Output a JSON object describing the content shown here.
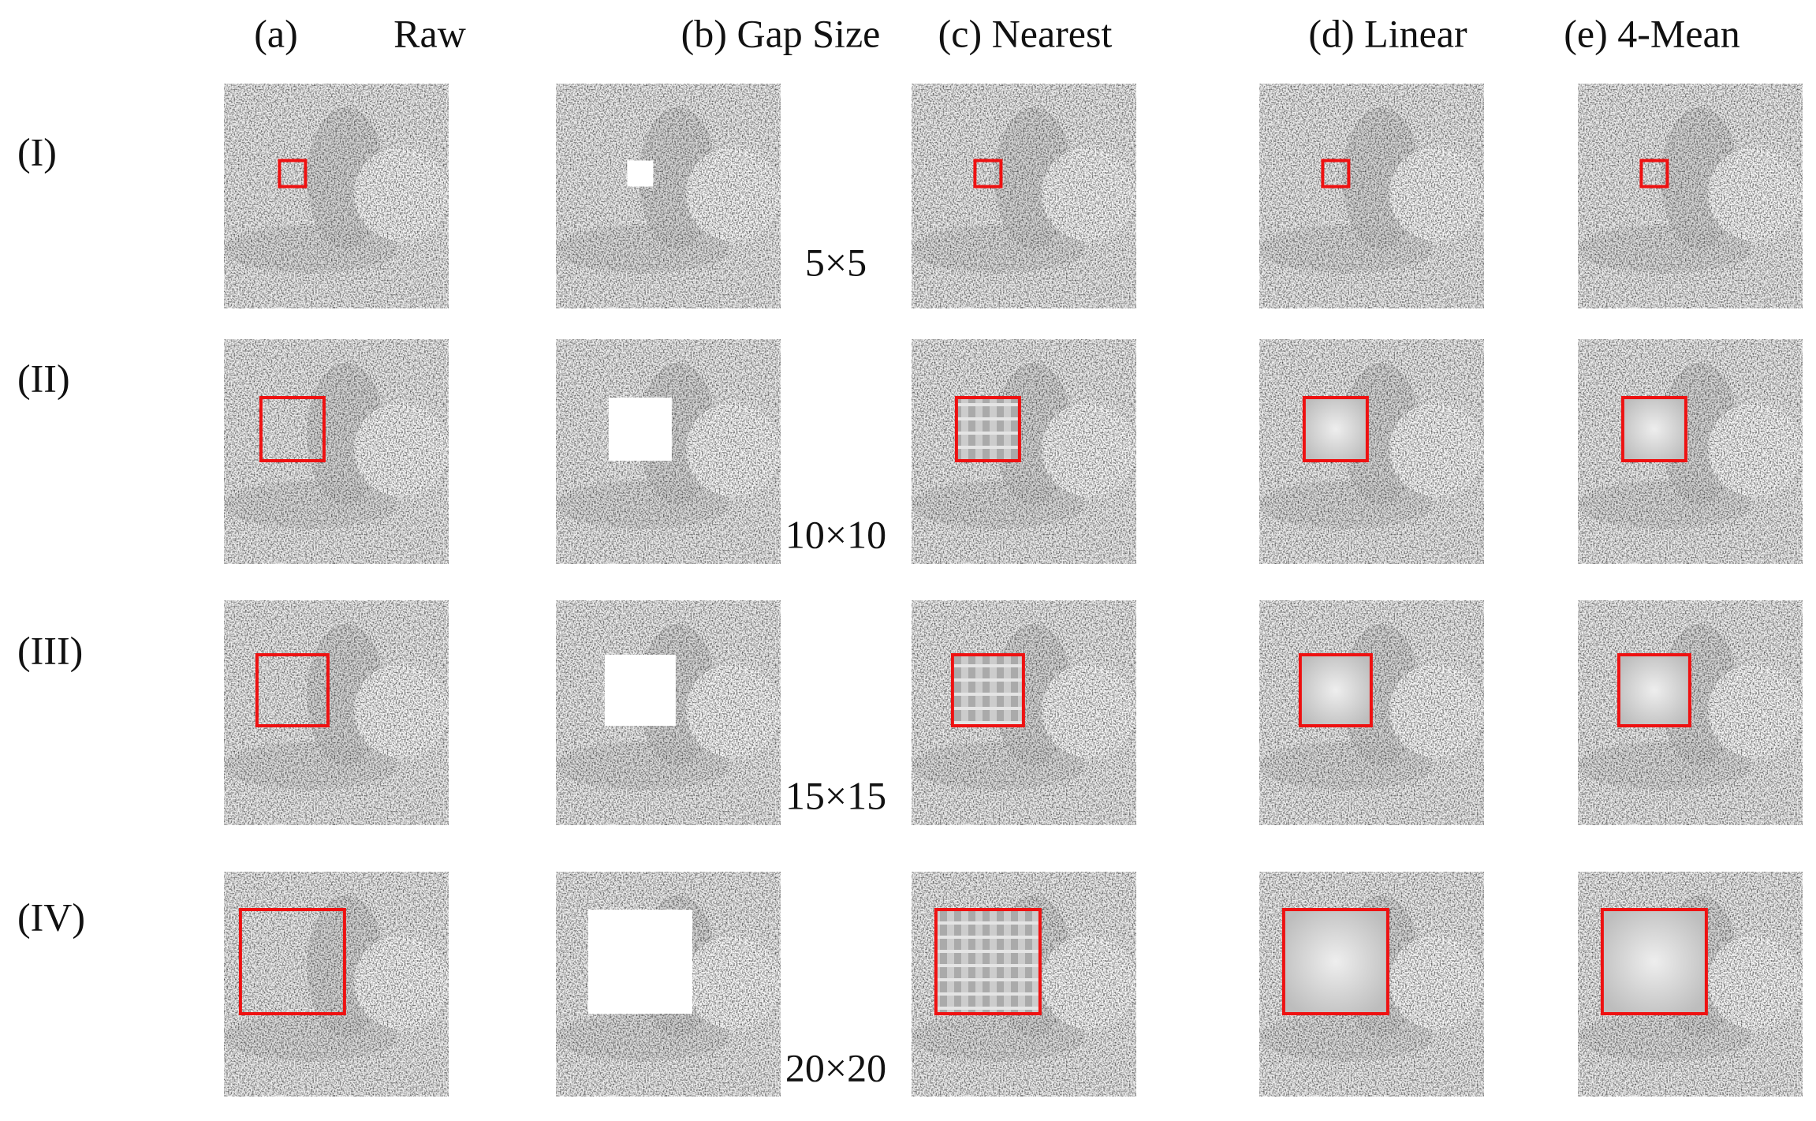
{
  "column_headers": [
    "(a)",
    "Raw",
    "(b) Gap Size",
    "(c) Nearest",
    "(d) Linear",
    "(e) 4-Mean"
  ],
  "rows": [
    {
      "label": "(I)",
      "gap_size": "5×5"
    },
    {
      "label": "(II)",
      "gap_size": "10×10"
    },
    {
      "label": "(III)",
      "gap_size": "15×15"
    },
    {
      "label": "(IV)",
      "gap_size": "20×20"
    }
  ]
}
